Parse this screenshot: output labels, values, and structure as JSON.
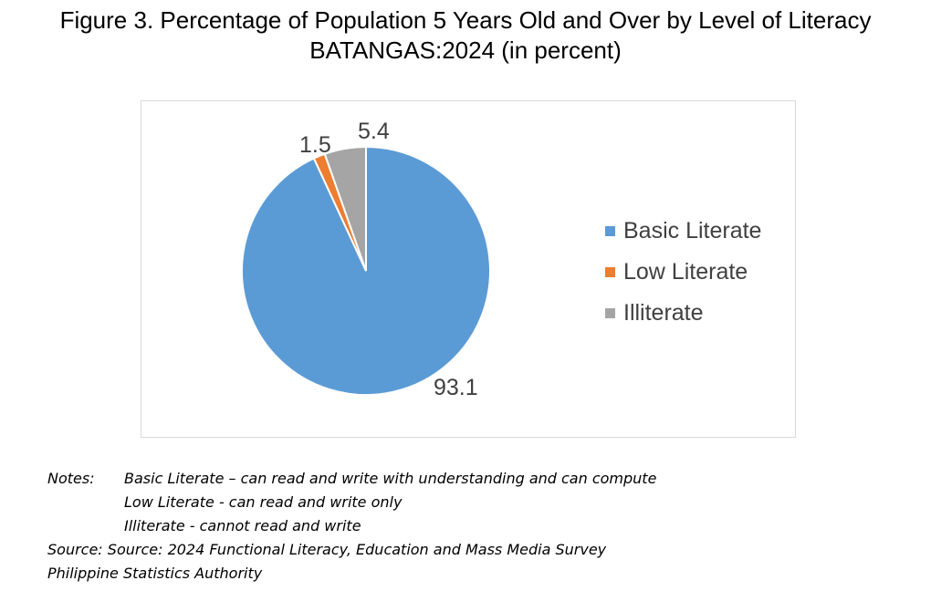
{
  "title_line1": "Figure 3.  Percentage of Population 5 Years Old and Over by Level of Literacy",
  "title_line2": "BATANGAS:2024 (in percent)",
  "chart_data": {
    "type": "pie",
    "categories": [
      "Basic Literate",
      "Low Literate",
      "Illiterate"
    ],
    "values": [
      93.1,
      1.5,
      5.4
    ],
    "data_labels": [
      "93.1",
      "1.5",
      "5.4"
    ],
    "colors": [
      "#5b9bd5",
      "#ed7d31",
      "#a5a5a5"
    ],
    "start_angle_deg": 0,
    "direction": "clockwise",
    "legend_position": "right"
  },
  "notes": {
    "label": "Notes:",
    "lines": [
      "Basic Literate – can read and write with understanding and can compute",
      "Low Literate - can read and write only",
      "Illiterate - cannot read and write"
    ],
    "source": "Source: Source: 2024 Functional Literacy, Education and Mass Media Survey",
    "agency": "Philippine Statistics Authority"
  }
}
